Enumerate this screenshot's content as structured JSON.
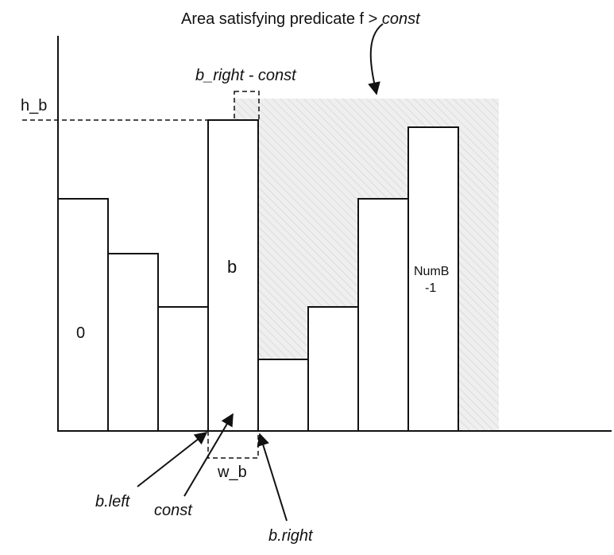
{
  "title_prefix": "Area satisfying predicate f > ",
  "title_const": "const",
  "labels": {
    "h_b": "h_b",
    "b_right_minus_const": "b_right - const",
    "bar_b": "b",
    "bar_0": "0",
    "numb_line1": "NumB",
    "numb_line2": "-1",
    "w_b": "w_b",
    "b_left": "b.left",
    "const": "const",
    "b_right": "b.right"
  },
  "colors": {
    "stroke": "#111111",
    "shade": "#eeeeee",
    "hatch": "#dddddd",
    "bar_fill": "#ffffff"
  }
}
